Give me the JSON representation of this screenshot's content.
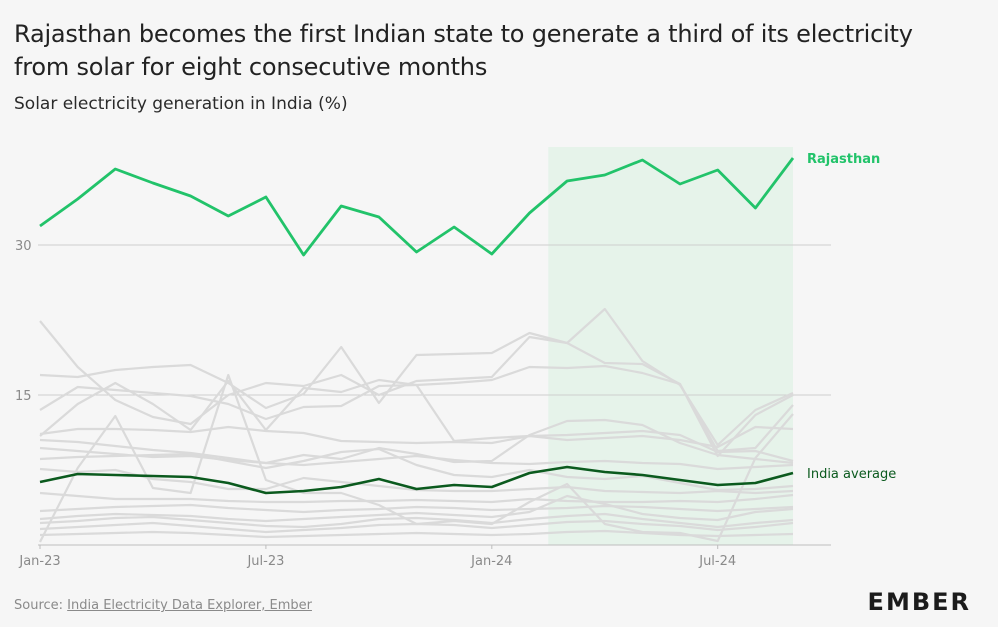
{
  "header": {
    "title": "Rajasthan becomes the first Indian state to generate a third of its electricity from solar for eight consecutive months",
    "subtitle": "Solar electricity generation in India (%)"
  },
  "footer": {
    "source_prefix": "Source: ",
    "source_link": "India Electricity Data Explorer, Ember",
    "logo": "EMBER"
  },
  "colors": {
    "rajasthan": "#22c36a",
    "india_average": "#0b5a1e",
    "other_states": "#dadada",
    "highlight": "#e6f3ea",
    "grid": "#cfcfcf",
    "axis_text": "#8a8a8a"
  },
  "chart_data": {
    "type": "line",
    "x": [
      "Jan-23",
      "Feb-23",
      "Mar-23",
      "Apr-23",
      "May-23",
      "Jun-23",
      "Jul-23",
      "Aug-23",
      "Sep-23",
      "Oct-23",
      "Nov-23",
      "Dec-23",
      "Jan-24",
      "Feb-24",
      "Mar-24",
      "Apr-24",
      "May-24",
      "Jun-24",
      "Jul-24",
      "Aug-24",
      "Sep-24"
    ],
    "x_tick_labels": [
      "Jan-23",
      "Jul-23",
      "Jan-24",
      "Jul-24"
    ],
    "y_ticks": [
      15,
      30
    ],
    "ylim": [
      0,
      42
    ],
    "highlight_range": [
      "Mar-24",
      "Sep-24"
    ],
    "grid": true,
    "series": [
      {
        "name": "Rajasthan",
        "role": "highlight",
        "values": [
          31.9,
          34.6,
          37.6,
          36.2,
          34.9,
          32.9,
          34.8,
          29.0,
          33.9,
          32.8,
          29.3,
          31.8,
          29.1,
          33.2,
          36.4,
          37.0,
          38.5,
          36.1,
          37.5,
          33.7,
          38.7
        ]
      },
      {
        "name": "India average",
        "role": "average",
        "values": [
          6.3,
          7.1,
          7.0,
          6.9,
          6.8,
          6.2,
          5.2,
          5.4,
          5.8,
          6.6,
          5.6,
          6.0,
          5.8,
          7.2,
          7.8,
          7.3,
          7.0,
          6.5,
          6.0,
          6.2,
          7.2
        ]
      },
      {
        "role": "other",
        "values": [
          22.4,
          17.8,
          14.5,
          12.8,
          12.1,
          15.0,
          16.2,
          15.9,
          17.0,
          15.0,
          16.4,
          16.6,
          16.8,
          20.8,
          20.2,
          23.6,
          18.4,
          16.0,
          10.0,
          13.5,
          15.2
        ]
      },
      {
        "role": "other",
        "values": [
          17.0,
          16.8,
          17.5,
          17.8,
          18.0,
          16.2,
          13.7,
          15.1,
          19.8,
          14.2,
          19.0,
          19.1,
          19.2,
          21.2,
          20.2,
          18.2,
          18.1,
          16.1,
          9.4,
          9.7,
          14.0
        ]
      },
      {
        "role": "other",
        "values": [
          13.5,
          15.8,
          15.5,
          15.2,
          14.9,
          14.1,
          12.6,
          13.8,
          13.9,
          15.9,
          16.0,
          16.2,
          16.5,
          17.8,
          17.7,
          17.9,
          17.2,
          16.1,
          8.9,
          13.0,
          15.0
        ]
      },
      {
        "role": "other",
        "values": [
          10.9,
          14.1,
          16.2,
          14.1,
          11.5,
          16.4,
          11.5,
          15.7,
          15.3,
          16.5,
          16.0,
          10.4,
          10.7,
          10.9,
          10.5,
          10.7,
          10.9,
          10.5,
          9.8,
          11.8,
          11.6
        ]
      },
      {
        "role": "other",
        "values": [
          11.1,
          11.6,
          11.6,
          11.5,
          11.3,
          11.8,
          11.4,
          11.2,
          10.4,
          10.3,
          10.2,
          10.3,
          10.2,
          10.9,
          11.0,
          11.2,
          11.4,
          11.0,
          9.3,
          9.4,
          8.4
        ]
      },
      {
        "role": "other",
        "values": [
          10.5,
          10.3,
          9.9,
          9.5,
          9.2,
          8.7,
          8.2,
          9.0,
          8.6,
          9.7,
          9.1,
          8.3,
          8.4,
          11.0,
          12.4,
          12.5,
          12.0,
          10.2,
          9.0,
          8.6,
          8.2
        ]
      },
      {
        "role": "other",
        "values": [
          9.7,
          9.4,
          9.1,
          8.8,
          8.9,
          8.5,
          8.2,
          8.0,
          8.3,
          8.6,
          8.9,
          8.5,
          8.2,
          8.1,
          8.3,
          8.4,
          8.2,
          8.1,
          7.6,
          7.8,
          8.0
        ]
      },
      {
        "role": "other",
        "values": [
          8.6,
          8.8,
          8.9,
          9.0,
          9.1,
          8.4,
          7.7,
          8.4,
          9.3,
          9.6,
          8.0,
          7.0,
          6.8,
          7.5,
          6.8,
          6.6,
          6.9,
          6.2,
          5.5,
          5.6,
          5.9
        ]
      },
      {
        "role": "other",
        "values": [
          7.6,
          7.3,
          7.5,
          6.6,
          6.3,
          5.6,
          5.6,
          6.7,
          6.3,
          5.9,
          5.5,
          5.4,
          5.4,
          5.6,
          5.8,
          5.4,
          5.3,
          5.2,
          5.4,
          5.2,
          5.4
        ]
      },
      {
        "role": "other",
        "values": [
          0.3,
          7.7,
          12.9,
          5.7,
          5.2,
          17.0,
          6.5,
          5.2,
          5.2,
          4.0,
          2.1,
          2.4,
          2.1,
          4.3,
          6.1,
          2.1,
          1.3,
          1.2,
          0.4,
          8.7,
          13.1
        ]
      },
      {
        "role": "other",
        "values": [
          5.2,
          4.9,
          4.6,
          4.6,
          4.6,
          4.4,
          4.3,
          4.3,
          4.4,
          4.4,
          4.5,
          4.4,
          4.3,
          4.6,
          4.4,
          4.3,
          4.3,
          4.4,
          4.3,
          4.6,
          5.0
        ]
      },
      {
        "role": "other",
        "values": [
          3.4,
          3.6,
          3.8,
          3.9,
          4.0,
          3.7,
          3.5,
          3.3,
          3.5,
          3.6,
          3.8,
          3.7,
          3.5,
          3.6,
          3.7,
          3.9,
          3.8,
          3.6,
          3.4,
          3.6,
          3.8
        ]
      },
      {
        "role": "other",
        "values": [
          2.6,
          2.9,
          3.1,
          3.0,
          2.9,
          2.6,
          2.4,
          2.6,
          2.8,
          3.0,
          3.2,
          3.0,
          2.8,
          3.3,
          4.9,
          4.1,
          3.1,
          2.7,
          2.5,
          3.3,
          3.6
        ]
      },
      {
        "role": "other",
        "values": [
          2.2,
          2.4,
          2.7,
          2.8,
          2.5,
          2.2,
          1.9,
          1.8,
          2.1,
          2.6,
          2.7,
          2.5,
          2.2,
          2.6,
          2.9,
          3.1,
          2.6,
          2.2,
          1.8,
          2.2,
          2.5
        ]
      },
      {
        "role": "other",
        "values": [
          1.6,
          1.8,
          2.0,
          2.2,
          1.9,
          1.6,
          1.3,
          1.5,
          1.7,
          2.0,
          2.1,
          2.0,
          1.7,
          2.0,
          2.3,
          2.4,
          2.1,
          1.9,
          1.5,
          1.8,
          2.2
        ]
      },
      {
        "role": "other",
        "values": [
          1.0,
          1.1,
          1.2,
          1.3,
          1.2,
          1.0,
          0.8,
          0.9,
          1.0,
          1.1,
          1.2,
          1.1,
          1.0,
          1.1,
          1.3,
          1.4,
          1.2,
          1.0,
          0.9,
          1.0,
          1.1
        ]
      }
    ]
  }
}
